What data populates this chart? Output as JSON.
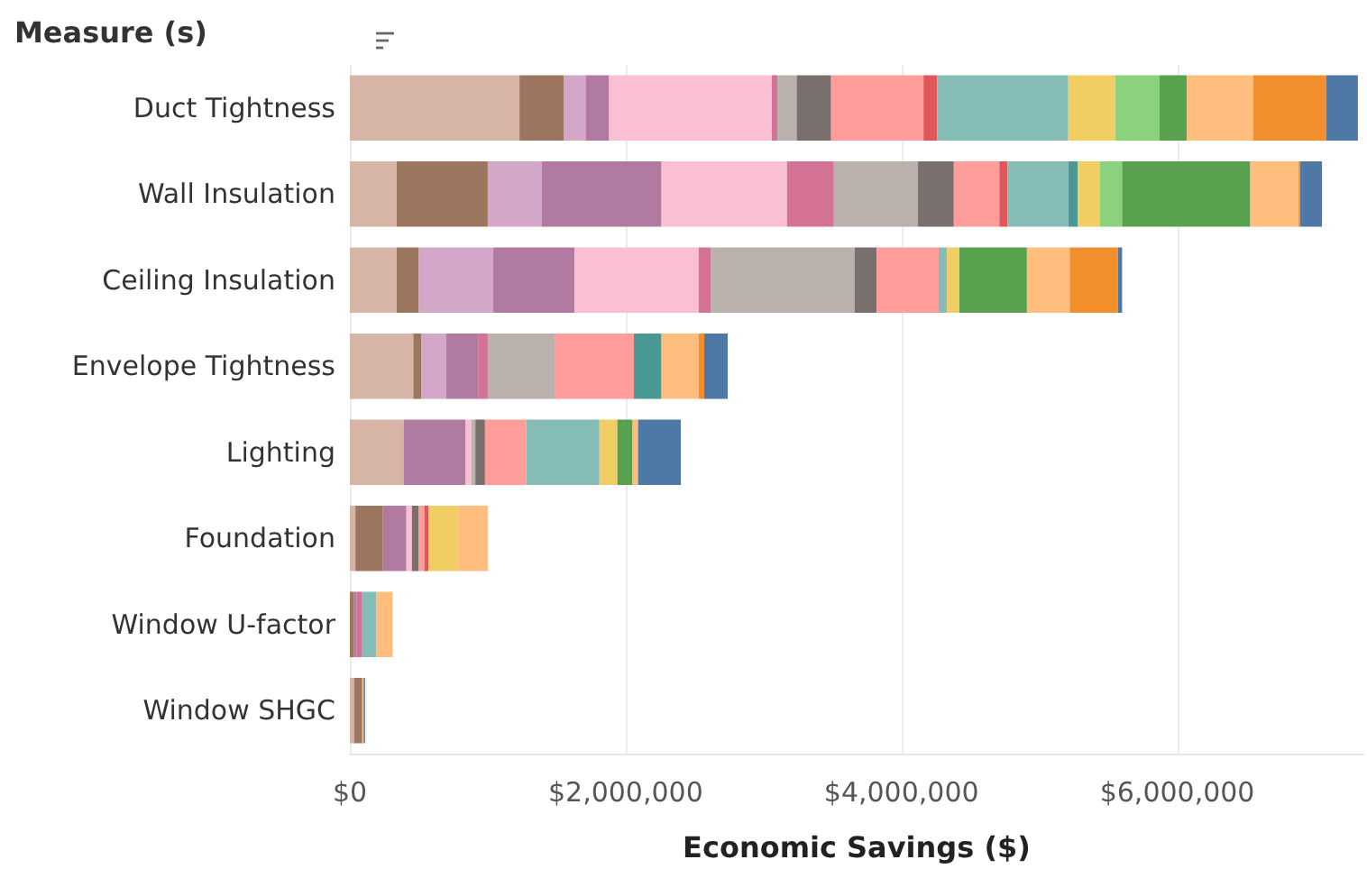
{
  "chart_data": {
    "type": "bar",
    "orientation": "horizontal",
    "stacked": true,
    "ylabel": "Measure (s)",
    "xlabel": "Economic Savings ($)",
    "grid": "x",
    "categories": [
      "Duct Tightness",
      "Wall Insulation",
      "Ceiling Insulation",
      "Envelope Tightness",
      "Lighting",
      "Foundation",
      "Window U-factor",
      "Window SHGC"
    ],
    "xlim": [
      0,
      7350000
    ],
    "xticks": [
      {
        "value": 0,
        "label": "$0"
      },
      {
        "value": 2000000,
        "label": "$2,000,000"
      },
      {
        "value": 4000000,
        "label": "$4,000,000"
      },
      {
        "value": 6000000,
        "label": "$6,000,000"
      }
    ],
    "series": [
      {
        "color": "#d7b5a6",
        "values": [
          1230000,
          340000,
          340000,
          460000,
          390000,
          40000,
          null,
          30000
        ]
      },
      {
        "color": "#9d7660",
        "values": [
          320000,
          660000,
          160000,
          60000,
          null,
          200000,
          30000,
          60000
        ]
      },
      {
        "color": "#d4a6c8",
        "values": [
          160000,
          390000,
          540000,
          180000,
          null,
          null,
          null,
          null
        ]
      },
      {
        "color": "#b07aa1",
        "values": [
          170000,
          870000,
          590000,
          230000,
          450000,
          170000,
          20000,
          null
        ]
      },
      {
        "color": "#fabfd2",
        "values": [
          1180000,
          910000,
          900000,
          null,
          40000,
          40000,
          null,
          null
        ]
      },
      {
        "color": "#d37295",
        "values": [
          40000,
          340000,
          90000,
          70000,
          null,
          null,
          40000,
          null
        ]
      },
      {
        "color": "#bab0ac",
        "values": [
          140000,
          610000,
          1040000,
          490000,
          30000,
          null,
          null,
          null
        ]
      },
      {
        "color": "#79706e",
        "values": [
          250000,
          260000,
          160000,
          null,
          70000,
          50000,
          null,
          null
        ]
      },
      {
        "color": "#ff9d9a",
        "values": [
          670000,
          330000,
          450000,
          570000,
          300000,
          40000,
          null,
          null
        ]
      },
      {
        "color": "#e15759",
        "values": [
          100000,
          60000,
          null,
          null,
          null,
          30000,
          null,
          null
        ]
      },
      {
        "color": "#86bcb6",
        "values": [
          950000,
          440000,
          60000,
          null,
          530000,
          null,
          100000,
          null
        ]
      },
      {
        "color": "#499894",
        "values": [
          null,
          70000,
          null,
          200000,
          null,
          null,
          null,
          null
        ]
      },
      {
        "color": "#f1ce63",
        "values": [
          340000,
          160000,
          90000,
          null,
          130000,
          210000,
          null,
          null
        ]
      },
      {
        "color": "#8cd17d",
        "values": [
          320000,
          160000,
          null,
          null,
          null,
          null,
          null,
          null
        ]
      },
      {
        "color": "#59a14f",
        "values": [
          200000,
          930000,
          490000,
          null,
          110000,
          null,
          null,
          null
        ]
      },
      {
        "color": "#ffbe7d",
        "values": [
          480000,
          350000,
          310000,
          270000,
          40000,
          220000,
          120000,
          10000
        ]
      },
      {
        "color": "#f28e2b",
        "values": [
          530000,
          10000,
          350000,
          40000,
          null,
          null,
          null,
          null
        ]
      },
      {
        "color": "#4e79a7",
        "values": [
          230000,
          160000,
          30000,
          170000,
          310000,
          null,
          null,
          10000
        ]
      }
    ]
  }
}
